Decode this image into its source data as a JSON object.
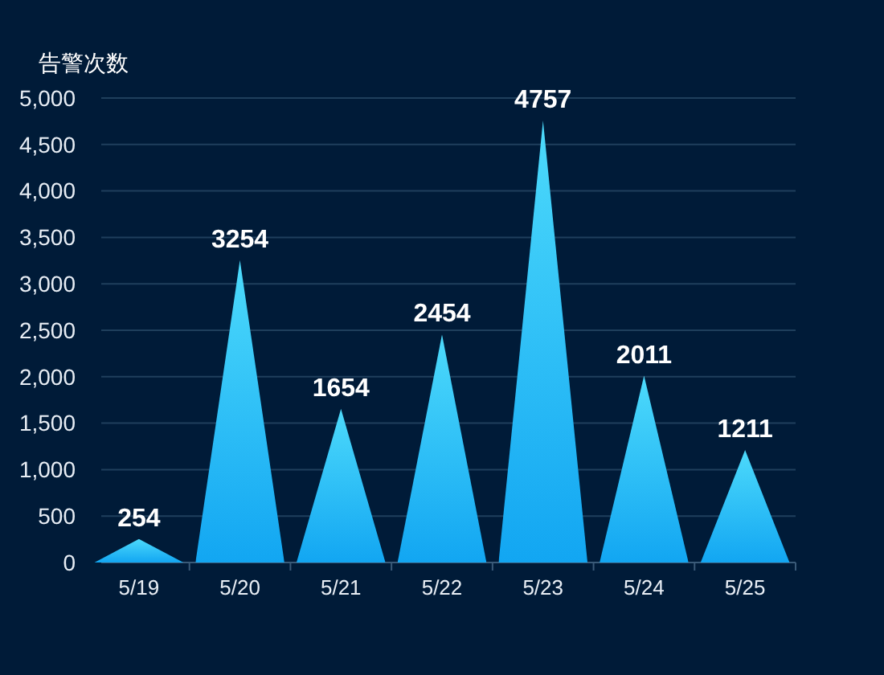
{
  "chart_data": {
    "type": "bar",
    "ylabel": "告警次数",
    "categories": [
      "5/19",
      "5/20",
      "5/21",
      "5/22",
      "5/23",
      "5/24",
      "5/25"
    ],
    "values": [
      254,
      3254,
      1654,
      2454,
      4757,
      2011,
      1211
    ],
    "color": "#12a6f2",
    "ylim": [
      0,
      5000
    ],
    "yticks": [
      0,
      500,
      {
        "value": 1000,
        "label": "1,000"
      },
      {
        "value": 1500,
        "label": "1,500"
      },
      {
        "value": 2000,
        "label": "2,000"
      },
      {
        "value": 2500,
        "label": "2,500"
      },
      {
        "value": 3000,
        "label": "3,000"
      },
      {
        "value": 3500,
        "label": "3,500"
      },
      {
        "value": 4000,
        "label": "4,000"
      },
      {
        "value": 4500,
        "label": "4,500"
      },
      {
        "value": 5000,
        "label": "5,000"
      }
    ],
    "grid": "y",
    "data_labels": true
  }
}
